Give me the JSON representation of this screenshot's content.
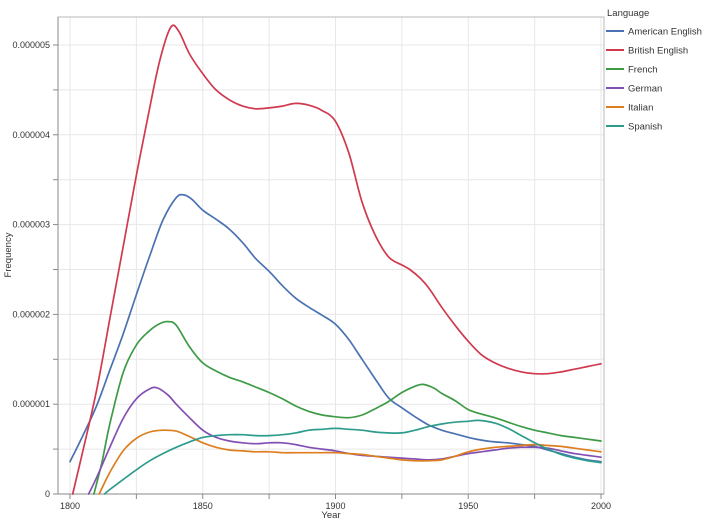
{
  "chart_data": {
    "type": "line",
    "title": "",
    "xlabel": "Year",
    "ylabel": "Frequency",
    "legend_title": "Language",
    "legend_position": "top-right-outside",
    "grid": "light gray minor+major gridlines, both axes",
    "x_range": [
      1800,
      2000
    ],
    "y_range": [
      0,
      5.3e-06
    ],
    "x_major_ticks": [
      1800,
      1850,
      1900,
      1950,
      2000
    ],
    "x_minor_tick_step_years": 25,
    "y_major_ticks": [
      {
        "value": 0.0,
        "label": "0"
      },
      {
        "value": 1e-06,
        "label": "0.000001"
      },
      {
        "value": 2e-06,
        "label": "0.000002"
      },
      {
        "value": 3e-06,
        "label": "0.000003"
      },
      {
        "value": 4e-06,
        "label": "0.000004"
      },
      {
        "value": 5e-06,
        "label": "0.000005"
      }
    ],
    "y_minor_tick_step": 5e-07,
    "y_values_scaled_by": 1e-06,
    "series": [
      {
        "name": "American English",
        "color": "#4a72b2",
        "points": [
          [
            1800,
            0.36
          ],
          [
            1805,
            0.66
          ],
          [
            1810,
            0.98
          ],
          [
            1815,
            1.38
          ],
          [
            1820,
            1.78
          ],
          [
            1825,
            2.22
          ],
          [
            1830,
            2.65
          ],
          [
            1835,
            3.05
          ],
          [
            1840,
            3.3
          ],
          [
            1843,
            3.33
          ],
          [
            1846,
            3.28
          ],
          [
            1850,
            3.16
          ],
          [
            1855,
            3.06
          ],
          [
            1860,
            2.95
          ],
          [
            1865,
            2.8
          ],
          [
            1870,
            2.62
          ],
          [
            1875,
            2.48
          ],
          [
            1880,
            2.32
          ],
          [
            1885,
            2.18
          ],
          [
            1890,
            2.08
          ],
          [
            1895,
            1.99
          ],
          [
            1900,
            1.89
          ],
          [
            1905,
            1.72
          ],
          [
            1910,
            1.5
          ],
          [
            1915,
            1.28
          ],
          [
            1920,
            1.07
          ],
          [
            1925,
            0.96
          ],
          [
            1930,
            0.86
          ],
          [
            1935,
            0.77
          ],
          [
            1940,
            0.71
          ],
          [
            1945,
            0.67
          ],
          [
            1950,
            0.63
          ],
          [
            1955,
            0.6
          ],
          [
            1960,
            0.58
          ],
          [
            1965,
            0.57
          ],
          [
            1970,
            0.55
          ],
          [
            1975,
            0.53
          ],
          [
            1980,
            0.49
          ],
          [
            1985,
            0.45
          ],
          [
            1990,
            0.41
          ],
          [
            1995,
            0.38
          ],
          [
            2000,
            0.36
          ]
        ]
      },
      {
        "name": "British English",
        "color": "#d0394e",
        "points": [
          [
            1801,
            0
          ],
          [
            1805,
            0.5
          ],
          [
            1810,
            1.15
          ],
          [
            1815,
            1.95
          ],
          [
            1820,
            2.75
          ],
          [
            1825,
            3.55
          ],
          [
            1830,
            4.3
          ],
          [
            1834,
            4.85
          ],
          [
            1838,
            5.2
          ],
          [
            1841,
            5.15
          ],
          [
            1845,
            4.9
          ],
          [
            1850,
            4.68
          ],
          [
            1855,
            4.5
          ],
          [
            1860,
            4.39
          ],
          [
            1865,
            4.32
          ],
          [
            1870,
            4.29
          ],
          [
            1875,
            4.3
          ],
          [
            1880,
            4.32
          ],
          [
            1885,
            4.35
          ],
          [
            1890,
            4.33
          ],
          [
            1895,
            4.27
          ],
          [
            1900,
            4.15
          ],
          [
            1905,
            3.8
          ],
          [
            1910,
            3.25
          ],
          [
            1915,
            2.88
          ],
          [
            1920,
            2.64
          ],
          [
            1925,
            2.55
          ],
          [
            1928,
            2.5
          ],
          [
            1932,
            2.4
          ],
          [
            1935,
            2.3
          ],
          [
            1940,
            2.08
          ],
          [
            1945,
            1.88
          ],
          [
            1950,
            1.7
          ],
          [
            1955,
            1.55
          ],
          [
            1960,
            1.46
          ],
          [
            1965,
            1.4
          ],
          [
            1970,
            1.36
          ],
          [
            1975,
            1.34
          ],
          [
            1980,
            1.34
          ],
          [
            1985,
            1.36
          ],
          [
            1990,
            1.39
          ],
          [
            1995,
            1.42
          ],
          [
            2000,
            1.45
          ]
        ]
      },
      {
        "name": "French",
        "color": "#3d9b46",
        "points": [
          [
            1809,
            0
          ],
          [
            1812,
            0.35
          ],
          [
            1815,
            0.78
          ],
          [
            1820,
            1.35
          ],
          [
            1825,
            1.66
          ],
          [
            1830,
            1.82
          ],
          [
            1834,
            1.9
          ],
          [
            1837,
            1.92
          ],
          [
            1840,
            1.88
          ],
          [
            1845,
            1.64
          ],
          [
            1850,
            1.46
          ],
          [
            1855,
            1.37
          ],
          [
            1860,
            1.3
          ],
          [
            1865,
            1.25
          ],
          [
            1870,
            1.19
          ],
          [
            1875,
            1.13
          ],
          [
            1880,
            1.06
          ],
          [
            1885,
            0.98
          ],
          [
            1890,
            0.92
          ],
          [
            1895,
            0.88
          ],
          [
            1900,
            0.86
          ],
          [
            1905,
            0.85
          ],
          [
            1910,
            0.88
          ],
          [
            1915,
            0.95
          ],
          [
            1920,
            1.03
          ],
          [
            1925,
            1.13
          ],
          [
            1930,
            1.2
          ],
          [
            1933,
            1.22
          ],
          [
            1937,
            1.18
          ],
          [
            1940,
            1.12
          ],
          [
            1945,
            1.04
          ],
          [
            1950,
            0.94
          ],
          [
            1955,
            0.89
          ],
          [
            1960,
            0.85
          ],
          [
            1965,
            0.8
          ],
          [
            1970,
            0.75
          ],
          [
            1975,
            0.71
          ],
          [
            1980,
            0.68
          ],
          [
            1985,
            0.65
          ],
          [
            1990,
            0.63
          ],
          [
            1995,
            0.61
          ],
          [
            2000,
            0.59
          ]
        ]
      },
      {
        "name": "German",
        "color": "#8250b4",
        "points": [
          [
            1807,
            0
          ],
          [
            1810,
            0.18
          ],
          [
            1815,
            0.52
          ],
          [
            1820,
            0.84
          ],
          [
            1825,
            1.06
          ],
          [
            1830,
            1.17
          ],
          [
            1833,
            1.18
          ],
          [
            1837,
            1.1
          ],
          [
            1840,
            1.0
          ],
          [
            1845,
            0.85
          ],
          [
            1850,
            0.71
          ],
          [
            1855,
            0.63
          ],
          [
            1860,
            0.59
          ],
          [
            1865,
            0.57
          ],
          [
            1870,
            0.56
          ],
          [
            1875,
            0.57
          ],
          [
            1880,
            0.57
          ],
          [
            1885,
            0.55
          ],
          [
            1890,
            0.52
          ],
          [
            1895,
            0.5
          ],
          [
            1900,
            0.48
          ],
          [
            1905,
            0.45
          ],
          [
            1910,
            0.43
          ],
          [
            1915,
            0.42
          ],
          [
            1920,
            0.41
          ],
          [
            1925,
            0.4
          ],
          [
            1930,
            0.39
          ],
          [
            1935,
            0.38
          ],
          [
            1940,
            0.39
          ],
          [
            1945,
            0.42
          ],
          [
            1950,
            0.45
          ],
          [
            1955,
            0.47
          ],
          [
            1960,
            0.49
          ],
          [
            1965,
            0.51
          ],
          [
            1970,
            0.52
          ],
          [
            1975,
            0.52
          ],
          [
            1980,
            0.51
          ],
          [
            1985,
            0.48
          ],
          [
            1990,
            0.45
          ],
          [
            1995,
            0.43
          ],
          [
            2000,
            0.41
          ]
        ]
      },
      {
        "name": "Italian",
        "color": "#dd7e1f",
        "points": [
          [
            1811,
            0
          ],
          [
            1815,
            0.24
          ],
          [
            1820,
            0.48
          ],
          [
            1825,
            0.62
          ],
          [
            1830,
            0.69
          ],
          [
            1835,
            0.71
          ],
          [
            1840,
            0.7
          ],
          [
            1845,
            0.64
          ],
          [
            1850,
            0.57
          ],
          [
            1855,
            0.52
          ],
          [
            1860,
            0.49
          ],
          [
            1865,
            0.48
          ],
          [
            1870,
            0.47
          ],
          [
            1875,
            0.47
          ],
          [
            1880,
            0.46
          ],
          [
            1885,
            0.46
          ],
          [
            1890,
            0.46
          ],
          [
            1895,
            0.46
          ],
          [
            1900,
            0.46
          ],
          [
            1905,
            0.45
          ],
          [
            1910,
            0.44
          ],
          [
            1915,
            0.42
          ],
          [
            1920,
            0.4
          ],
          [
            1925,
            0.38
          ],
          [
            1930,
            0.37
          ],
          [
            1935,
            0.37
          ],
          [
            1940,
            0.38
          ],
          [
            1945,
            0.42
          ],
          [
            1950,
            0.47
          ],
          [
            1955,
            0.5
          ],
          [
            1960,
            0.52
          ],
          [
            1965,
            0.53
          ],
          [
            1970,
            0.54
          ],
          [
            1975,
            0.55
          ],
          [
            1980,
            0.54
          ],
          [
            1985,
            0.53
          ],
          [
            1990,
            0.51
          ],
          [
            1995,
            0.49
          ],
          [
            2000,
            0.47
          ]
        ]
      },
      {
        "name": "Spanish",
        "color": "#2d9c8d",
        "points": [
          [
            1813,
            0
          ],
          [
            1815,
            0.05
          ],
          [
            1820,
            0.16
          ],
          [
            1825,
            0.27
          ],
          [
            1830,
            0.37
          ],
          [
            1835,
            0.45
          ],
          [
            1840,
            0.52
          ],
          [
            1845,
            0.58
          ],
          [
            1850,
            0.63
          ],
          [
            1855,
            0.65
          ],
          [
            1860,
            0.66
          ],
          [
            1865,
            0.66
          ],
          [
            1870,
            0.65
          ],
          [
            1875,
            0.65
          ],
          [
            1880,
            0.66
          ],
          [
            1885,
            0.68
          ],
          [
            1890,
            0.71
          ],
          [
            1895,
            0.72
          ],
          [
            1900,
            0.73
          ],
          [
            1905,
            0.72
          ],
          [
            1910,
            0.71
          ],
          [
            1915,
            0.69
          ],
          [
            1920,
            0.68
          ],
          [
            1925,
            0.68
          ],
          [
            1930,
            0.71
          ],
          [
            1935,
            0.75
          ],
          [
            1940,
            0.78
          ],
          [
            1945,
            0.8
          ],
          [
            1950,
            0.81
          ],
          [
            1954,
            0.82
          ],
          [
            1960,
            0.79
          ],
          [
            1965,
            0.73
          ],
          [
            1970,
            0.65
          ],
          [
            1975,
            0.57
          ],
          [
            1980,
            0.5
          ],
          [
            1985,
            0.44
          ],
          [
            1990,
            0.4
          ],
          [
            1995,
            0.37
          ],
          [
            2000,
            0.35
          ]
        ]
      }
    ],
    "colors": {
      "grid": "#e7e7e7",
      "frame": "#b8b8b8",
      "axis": "#8a8a8a",
      "text": "#333333",
      "background": "#ffffff"
    }
  }
}
